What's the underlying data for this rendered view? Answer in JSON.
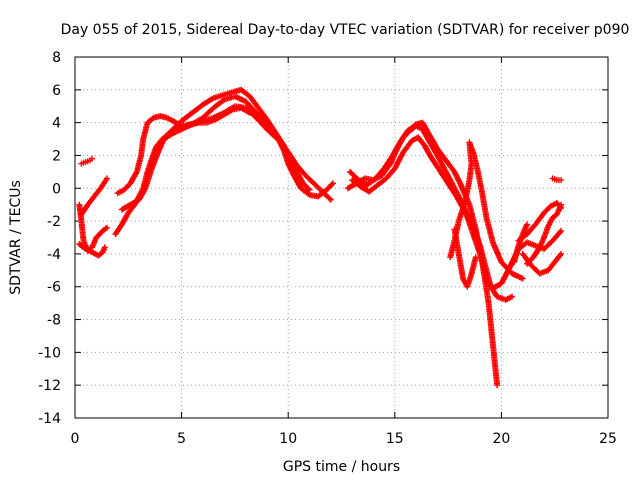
{
  "chart_data": {
    "type": "scatter",
    "title": "Day 055 of 2015, Sidereal Day-to-day VTEC variation (SDTVAR) for receiver p090",
    "xlabel": "GPS time / hours",
    "ylabel": "SDTVAR / TECUs",
    "xlim": [
      0,
      25
    ],
    "ylim": [
      -14,
      8
    ],
    "xticks": [
      0,
      5,
      10,
      15,
      20,
      25
    ],
    "yticks": [
      -14,
      -12,
      -10,
      -8,
      -6,
      -4,
      -2,
      0,
      2,
      4,
      6,
      8
    ],
    "grid": true,
    "marker": "+",
    "series": [
      {
        "name": "s1",
        "color": "#ff0000",
        "points": [
          [
            0.2,
            -1.0
          ],
          [
            0.3,
            -2.0
          ],
          [
            0.4,
            -3.2
          ],
          [
            0.6,
            -3.8
          ],
          [
            0.8,
            -3.6
          ],
          [
            1.0,
            -3.0
          ],
          [
            1.3,
            -2.6
          ],
          [
            1.5,
            -2.4
          ]
        ]
      },
      {
        "name": "s2",
        "color": "#ff0000",
        "points": [
          [
            0.2,
            -3.4
          ],
          [
            0.5,
            -3.7
          ],
          [
            0.8,
            -3.9
          ],
          [
            1.1,
            -4.1
          ],
          [
            1.3,
            -3.9
          ],
          [
            1.4,
            -3.6
          ]
        ]
      },
      {
        "name": "s3",
        "color": "#ff0000",
        "points": [
          [
            0.3,
            1.5
          ],
          [
            0.5,
            1.6
          ],
          [
            0.7,
            1.7
          ],
          [
            0.8,
            1.8
          ]
        ]
      },
      {
        "name": "s4",
        "color": "#ff0000",
        "points": [
          [
            0.3,
            -1.6
          ],
          [
            0.6,
            -1.0
          ],
          [
            0.9,
            -0.5
          ],
          [
            1.2,
            0.0
          ],
          [
            1.4,
            0.4
          ],
          [
            1.5,
            0.6
          ]
        ]
      },
      {
        "name": "s5",
        "color": "#ff0000",
        "points": [
          [
            1.9,
            -2.8
          ],
          [
            2.2,
            -2.2
          ],
          [
            2.5,
            -1.5
          ],
          [
            2.8,
            -1.0
          ],
          [
            3.0,
            -0.5
          ],
          [
            3.2,
            0.0
          ],
          [
            3.4,
            1.0
          ],
          [
            3.6,
            1.8
          ],
          [
            3.8,
            2.5
          ],
          [
            4.1,
            3.0
          ],
          [
            4.5,
            3.3
          ],
          [
            5.0,
            3.6
          ],
          [
            5.5,
            3.9
          ],
          [
            6.0,
            4.1
          ],
          [
            6.5,
            4.3
          ],
          [
            7.0,
            4.6
          ],
          [
            7.5,
            5.0
          ],
          [
            8.0,
            4.9
          ],
          [
            8.5,
            4.3
          ],
          [
            9.0,
            3.6
          ],
          [
            9.5,
            3.0
          ],
          [
            10.0,
            2.2
          ],
          [
            10.4,
            1.4
          ],
          [
            10.8,
            0.8
          ],
          [
            11.2,
            0.3
          ],
          [
            11.6,
            -0.2
          ],
          [
            12.0,
            -0.7
          ]
        ]
      },
      {
        "name": "s6",
        "color": "#ff0000",
        "points": [
          [
            2.0,
            -0.3
          ],
          [
            2.3,
            -0.1
          ],
          [
            2.6,
            0.3
          ],
          [
            2.9,
            1.0
          ],
          [
            3.1,
            2.0
          ],
          [
            3.2,
            3.0
          ],
          [
            3.4,
            4.0
          ],
          [
            3.7,
            4.3
          ],
          [
            4.0,
            4.4
          ],
          [
            4.3,
            4.3
          ],
          [
            4.6,
            4.1
          ],
          [
            5.0,
            3.8
          ],
          [
            5.5,
            3.9
          ],
          [
            6.0,
            4.3
          ],
          [
            6.5,
            4.9
          ],
          [
            7.0,
            5.4
          ],
          [
            7.5,
            5.6
          ],
          [
            8.0,
            5.3
          ],
          [
            8.5,
            4.6
          ],
          [
            9.0,
            3.9
          ],
          [
            9.5,
            3.1
          ],
          [
            9.8,
            2.3
          ],
          [
            10.0,
            1.5
          ],
          [
            10.3,
            0.7
          ],
          [
            10.6,
            0.0
          ],
          [
            11.0,
            -0.4
          ],
          [
            11.4,
            -0.5
          ],
          [
            11.8,
            -0.1
          ],
          [
            12.1,
            0.3
          ]
        ]
      },
      {
        "name": "s7",
        "color": "#ff0000",
        "points": [
          [
            2.2,
            -1.3
          ],
          [
            2.6,
            -1.0
          ],
          [
            3.0,
            -0.7
          ],
          [
            3.3,
            0.0
          ],
          [
            3.6,
            1.2
          ],
          [
            3.9,
            2.2
          ],
          [
            4.2,
            3.1
          ],
          [
            4.6,
            3.6
          ],
          [
            5.0,
            4.1
          ],
          [
            5.5,
            4.6
          ],
          [
            6.0,
            5.1
          ],
          [
            6.5,
            5.5
          ],
          [
            7.0,
            5.7
          ],
          [
            7.5,
            5.9
          ],
          [
            7.8,
            6.0
          ],
          [
            8.2,
            5.6
          ],
          [
            8.6,
            4.9
          ],
          [
            9.0,
            4.2
          ],
          [
            9.4,
            3.4
          ],
          [
            9.8,
            2.6
          ],
          [
            10.1,
            1.8
          ],
          [
            10.4,
            1.0
          ],
          [
            10.7,
            0.3
          ],
          [
            11.0,
            -0.1
          ]
        ]
      },
      {
        "name": "s8",
        "color": "#ff0000",
        "points": [
          [
            3.8,
            2.4
          ],
          [
            4.2,
            3.0
          ],
          [
            4.6,
            3.4
          ],
          [
            5.0,
            3.7
          ],
          [
            5.4,
            3.9
          ],
          [
            5.8,
            4.0
          ],
          [
            6.2,
            4.0
          ],
          [
            6.6,
            4.2
          ],
          [
            7.0,
            4.5
          ],
          [
            7.4,
            4.8
          ],
          [
            7.8,
            4.9
          ],
          [
            8.2,
            4.6
          ]
        ]
      },
      {
        "name": "s9",
        "color": "#ff0000",
        "points": [
          [
            13.0,
            0.5
          ],
          [
            13.4,
            0.1
          ],
          [
            13.8,
            -0.2
          ],
          [
            14.2,
            0.2
          ],
          [
            14.6,
            0.6
          ],
          [
            15.0,
            1.2
          ],
          [
            15.4,
            2.2
          ],
          [
            15.8,
            2.9
          ],
          [
            16.1,
            3.1
          ],
          [
            16.4,
            2.6
          ],
          [
            16.7,
            1.9
          ],
          [
            17.0,
            1.3
          ],
          [
            17.3,
            0.7
          ],
          [
            17.6,
            0.1
          ],
          [
            17.9,
            -0.5
          ],
          [
            18.2,
            -1.2
          ],
          [
            18.6,
            -2.0
          ],
          [
            19.0,
            -3.5
          ],
          [
            19.3,
            -5.0
          ],
          [
            19.5,
            -6.0
          ],
          [
            19.8,
            -6.6
          ],
          [
            20.2,
            -6.8
          ],
          [
            20.5,
            -6.6
          ]
        ]
      },
      {
        "name": "s10",
        "color": "#ff0000",
        "points": [
          [
            12.8,
            0.0
          ],
          [
            13.2,
            0.3
          ],
          [
            13.6,
            0.6
          ],
          [
            14.0,
            0.5
          ],
          [
            14.4,
            0.8
          ],
          [
            14.8,
            1.5
          ],
          [
            15.1,
            2.4
          ],
          [
            15.4,
            3.1
          ],
          [
            15.7,
            3.5
          ],
          [
            16.0,
            3.8
          ],
          [
            16.3,
            3.6
          ],
          [
            16.6,
            2.9
          ],
          [
            17.0,
            2.0
          ],
          [
            17.4,
            1.0
          ],
          [
            17.8,
            0.0
          ],
          [
            18.2,
            -1.0
          ],
          [
            18.6,
            -2.5
          ],
          [
            19.0,
            -4.0
          ],
          [
            19.3,
            -5.6
          ],
          [
            19.6,
            -6.1
          ],
          [
            20.0,
            -5.8
          ],
          [
            20.4,
            -4.8
          ],
          [
            20.8,
            -3.7
          ],
          [
            21.2,
            -3.3
          ],
          [
            21.6,
            -3.5
          ],
          [
            22.0,
            -3.7
          ],
          [
            22.4,
            -3.2
          ],
          [
            22.8,
            -2.6
          ]
        ]
      },
      {
        "name": "s11",
        "color": "#ff0000",
        "points": [
          [
            12.9,
            1.0
          ],
          [
            13.3,
            0.5
          ],
          [
            13.7,
            0.2
          ],
          [
            14.1,
            0.6
          ],
          [
            14.5,
            1.2
          ],
          [
            14.9,
            2.0
          ],
          [
            15.3,
            2.9
          ],
          [
            15.6,
            3.5
          ],
          [
            16.0,
            3.9
          ],
          [
            16.3,
            4.0
          ],
          [
            16.6,
            3.3
          ],
          [
            17.0,
            2.4
          ],
          [
            17.4,
            1.7
          ],
          [
            17.8,
            1.0
          ],
          [
            18.1,
            0.2
          ],
          [
            18.5,
            -1.0
          ],
          [
            18.8,
            -2.5
          ],
          [
            19.1,
            -4.5
          ],
          [
            19.4,
            -7.0
          ],
          [
            19.6,
            -9.5
          ],
          [
            19.8,
            -12.0
          ]
        ]
      },
      {
        "name": "s12",
        "color": "#ff0000",
        "points": [
          [
            17.6,
            -4.2
          ],
          [
            17.8,
            -3.2
          ],
          [
            18.0,
            -2.0
          ],
          [
            18.3,
            -0.8
          ],
          [
            18.5,
            0.5
          ],
          [
            18.6,
            1.5
          ],
          [
            18.5,
            2.8
          ],
          [
            18.7,
            2.1
          ],
          [
            18.9,
            1.0
          ],
          [
            19.1,
            -0.3
          ],
          [
            19.3,
            -1.8
          ],
          [
            19.6,
            -3.3
          ],
          [
            20.0,
            -4.5
          ],
          [
            20.5,
            -5.2
          ],
          [
            21.0,
            -5.5
          ]
        ]
      },
      {
        "name": "s13",
        "color": "#ff0000",
        "points": [
          [
            17.8,
            -2.5
          ],
          [
            18.0,
            -4.0
          ],
          [
            18.2,
            -5.5
          ],
          [
            18.4,
            -6.0
          ],
          [
            18.6,
            -5.2
          ],
          [
            18.8,
            -4.2
          ]
        ]
      },
      {
        "name": "s14",
        "color": "#ff0000",
        "points": [
          [
            20.6,
            -4.5
          ],
          [
            20.8,
            -3.5
          ],
          [
            21.0,
            -2.8
          ],
          [
            21.2,
            -2.2
          ]
        ]
      },
      {
        "name": "s15",
        "color": "#ff0000",
        "points": [
          [
            21.2,
            -4.6
          ],
          [
            21.5,
            -4.2
          ],
          [
            21.8,
            -3.6
          ],
          [
            22.0,
            -3.0
          ],
          [
            22.2,
            -2.3
          ],
          [
            22.4,
            -1.8
          ],
          [
            22.6,
            -1.6
          ],
          [
            22.8,
            -1.0
          ]
        ]
      },
      {
        "name": "s16",
        "color": "#ff0000",
        "points": [
          [
            20.8,
            -3.2
          ],
          [
            21.2,
            -2.8
          ],
          [
            21.6,
            -2.2
          ],
          [
            22.0,
            -1.5
          ],
          [
            22.3,
            -1.1
          ],
          [
            22.6,
            -0.9
          ],
          [
            22.8,
            -1.2
          ]
        ]
      },
      {
        "name": "s17",
        "color": "#ff0000",
        "points": [
          [
            21.0,
            -4.0
          ],
          [
            21.4,
            -4.7
          ],
          [
            21.8,
            -5.2
          ],
          [
            22.2,
            -5.0
          ],
          [
            22.5,
            -4.5
          ],
          [
            22.8,
            -4.0
          ]
        ]
      },
      {
        "name": "s18",
        "color": "#ff0000",
        "points": [
          [
            22.4,
            0.6
          ],
          [
            22.6,
            0.5
          ],
          [
            22.8,
            0.5
          ]
        ]
      }
    ]
  }
}
